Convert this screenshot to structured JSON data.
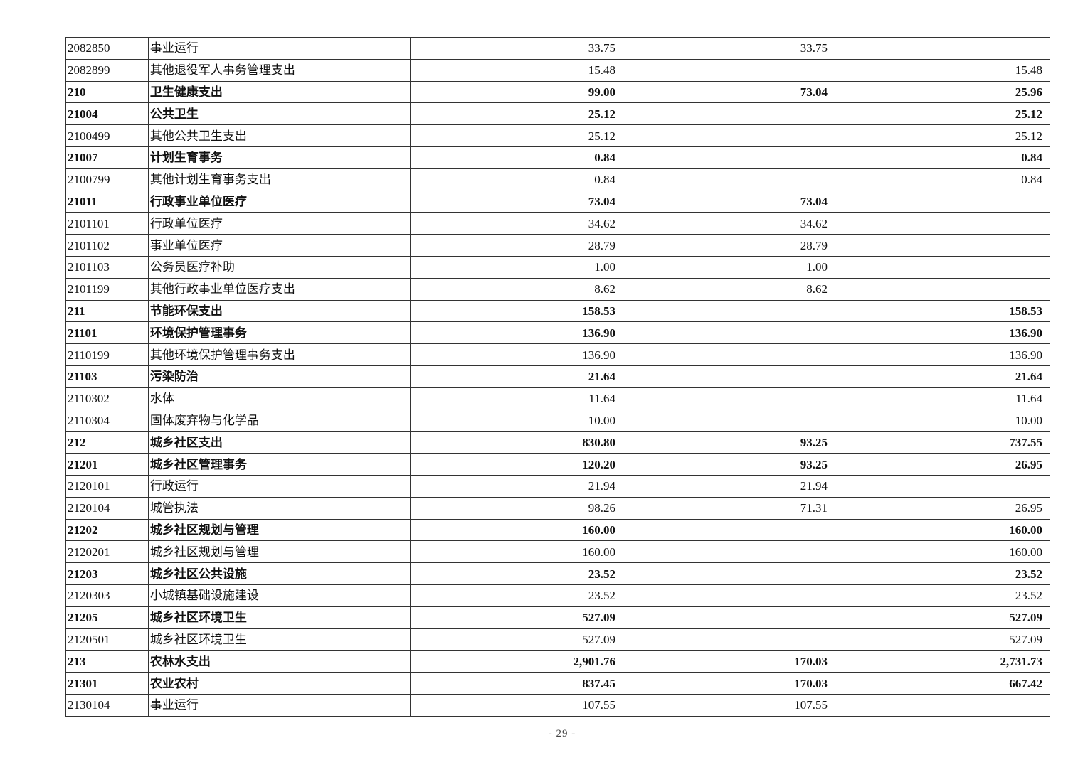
{
  "rows": [
    {
      "code": "2082850",
      "name": "事业运行",
      "total": "33.75",
      "basic": "33.75",
      "project": "",
      "bold": false
    },
    {
      "code": "2082899",
      "name": "其他退役军人事务管理支出",
      "total": "15.48",
      "basic": "",
      "project": "15.48",
      "bold": false
    },
    {
      "code": "210",
      "name": "卫生健康支出",
      "total": "99.00",
      "basic": "73.04",
      "project": "25.96",
      "bold": true
    },
    {
      "code": "21004",
      "name": "公共卫生",
      "total": "25.12",
      "basic": "",
      "project": "25.12",
      "bold": true
    },
    {
      "code": "2100499",
      "name": "其他公共卫生支出",
      "total": "25.12",
      "basic": "",
      "project": "25.12",
      "bold": false
    },
    {
      "code": "21007",
      "name": "计划生育事务",
      "total": "0.84",
      "basic": "",
      "project": "0.84",
      "bold": true
    },
    {
      "code": "2100799",
      "name": "其他计划生育事务支出",
      "total": "0.84",
      "basic": "",
      "project": "0.84",
      "bold": false
    },
    {
      "code": "21011",
      "name": "行政事业单位医疗",
      "total": "73.04",
      "basic": "73.04",
      "project": "",
      "bold": true
    },
    {
      "code": "2101101",
      "name": "行政单位医疗",
      "total": "34.62",
      "basic": "34.62",
      "project": "",
      "bold": false
    },
    {
      "code": "2101102",
      "name": "事业单位医疗",
      "total": "28.79",
      "basic": "28.79",
      "project": "",
      "bold": false
    },
    {
      "code": "2101103",
      "name": "公务员医疗补助",
      "total": "1.00",
      "basic": "1.00",
      "project": "",
      "bold": false
    },
    {
      "code": "2101199",
      "name": "其他行政事业单位医疗支出",
      "total": "8.62",
      "basic": "8.62",
      "project": "",
      "bold": false
    },
    {
      "code": "211",
      "name": "节能环保支出",
      "total": "158.53",
      "basic": "",
      "project": "158.53",
      "bold": true
    },
    {
      "code": "21101",
      "name": "环境保护管理事务",
      "total": "136.90",
      "basic": "",
      "project": "136.90",
      "bold": true
    },
    {
      "code": "2110199",
      "name": "其他环境保护管理事务支出",
      "total": "136.90",
      "basic": "",
      "project": "136.90",
      "bold": false
    },
    {
      "code": "21103",
      "name": "污染防治",
      "total": "21.64",
      "basic": "",
      "project": "21.64",
      "bold": true
    },
    {
      "code": "2110302",
      "name": "水体",
      "total": "11.64",
      "basic": "",
      "project": "11.64",
      "bold": false
    },
    {
      "code": "2110304",
      "name": "固体废弃物与化学品",
      "total": "10.00",
      "basic": "",
      "project": "10.00",
      "bold": false
    },
    {
      "code": "212",
      "name": "城乡社区支出",
      "total": "830.80",
      "basic": "93.25",
      "project": "737.55",
      "bold": true
    },
    {
      "code": "21201",
      "name": "城乡社区管理事务",
      "total": "120.20",
      "basic": "93.25",
      "project": "26.95",
      "bold": true
    },
    {
      "code": "2120101",
      "name": "行政运行",
      "total": "21.94",
      "basic": "21.94",
      "project": "",
      "bold": false
    },
    {
      "code": "2120104",
      "name": "城管执法",
      "total": "98.26",
      "basic": "71.31",
      "project": "26.95",
      "bold": false
    },
    {
      "code": "21202",
      "name": "城乡社区规划与管理",
      "total": "160.00",
      "basic": "",
      "project": "160.00",
      "bold": true
    },
    {
      "code": "2120201",
      "name": "城乡社区规划与管理",
      "total": "160.00",
      "basic": "",
      "project": "160.00",
      "bold": false
    },
    {
      "code": "21203",
      "name": "城乡社区公共设施",
      "total": "23.52",
      "basic": "",
      "project": "23.52",
      "bold": true
    },
    {
      "code": "2120303",
      "name": "小城镇基础设施建设",
      "total": "23.52",
      "basic": "",
      "project": "23.52",
      "bold": false
    },
    {
      "code": "21205",
      "name": "城乡社区环境卫生",
      "total": "527.09",
      "basic": "",
      "project": "527.09",
      "bold": true
    },
    {
      "code": "2120501",
      "name": "城乡社区环境卫生",
      "total": "527.09",
      "basic": "",
      "project": "527.09",
      "bold": false
    },
    {
      "code": "213",
      "name": "农林水支出",
      "total": "2,901.76",
      "basic": "170.03",
      "project": "2,731.73",
      "bold": true
    },
    {
      "code": "21301",
      "name": "农业农村",
      "total": "837.45",
      "basic": "170.03",
      "project": "667.42",
      "bold": true
    },
    {
      "code": "2130104",
      "name": "事业运行",
      "total": "107.55",
      "basic": "107.55",
      "project": "",
      "bold": false
    }
  ],
  "page_number": "- 29 -"
}
